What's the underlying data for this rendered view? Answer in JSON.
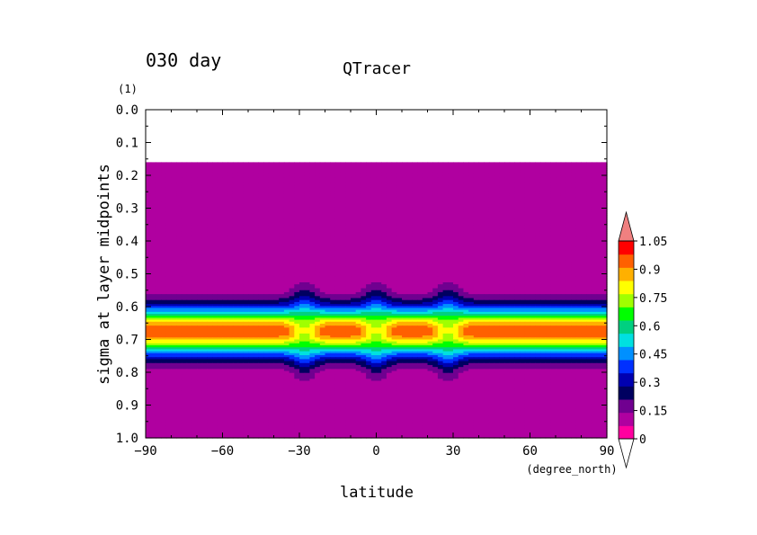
{
  "chart_data": {
    "type": "heatmap",
    "time_label": "030 day",
    "title": "QTracer",
    "xlabel": "latitude",
    "x_units": "(degree_north)",
    "ylabel": "sigma at layer midpoints",
    "y_units": "(1)",
    "xlim": [
      -90,
      90
    ],
    "ylim": [
      0.0,
      1.0
    ],
    "y_inverted": true,
    "x_ticks": [
      -90,
      -60,
      -30,
      0,
      30,
      60,
      90
    ],
    "x_tick_labels": [
      "−90",
      "−60",
      "−30",
      "0",
      "30",
      "60",
      "90"
    ],
    "y_ticks": [
      0.0,
      0.1,
      0.2,
      0.3,
      0.4,
      0.5,
      0.6,
      0.7,
      0.8,
      0.9,
      1.0
    ],
    "y_tick_labels": [
      "0.0",
      "0.1",
      "0.2",
      "0.3",
      "0.4",
      "0.5",
      "0.6",
      "0.7",
      "0.8",
      "0.9",
      "1.0"
    ],
    "missing_region_sigma": [
      0.0,
      0.16
    ],
    "field": {
      "background_value": 0.0,
      "layer_center_sigma": 0.675,
      "layer_peak_value": 0.95,
      "layer_half_width_sigma": 0.1,
      "bumps_latitude": [
        -28,
        0,
        28
      ],
      "bump_peak_value": 0.75
    },
    "colorbar": {
      "levels": [
        0,
        0.075,
        0.15,
        0.225,
        0.3,
        0.375,
        0.45,
        0.525,
        0.6,
        0.675,
        0.75,
        0.825,
        0.9,
        0.975,
        1.05
      ],
      "colors": [
        "#ff00a0",
        "#b000a0",
        "#700090",
        "#000060",
        "#0000b0",
        "#0030ff",
        "#0090ff",
        "#00e0e0",
        "#00d080",
        "#00ff00",
        "#a0ff00",
        "#ffff00",
        "#ffb000",
        "#ff6000",
        "#ff0000",
        "#f08080"
      ],
      "tick_labels": [
        "0",
        "0.15",
        "0.3",
        "0.45",
        "0.6",
        "0.75",
        "0.9",
        "1.05"
      ],
      "extend": "both"
    }
  }
}
